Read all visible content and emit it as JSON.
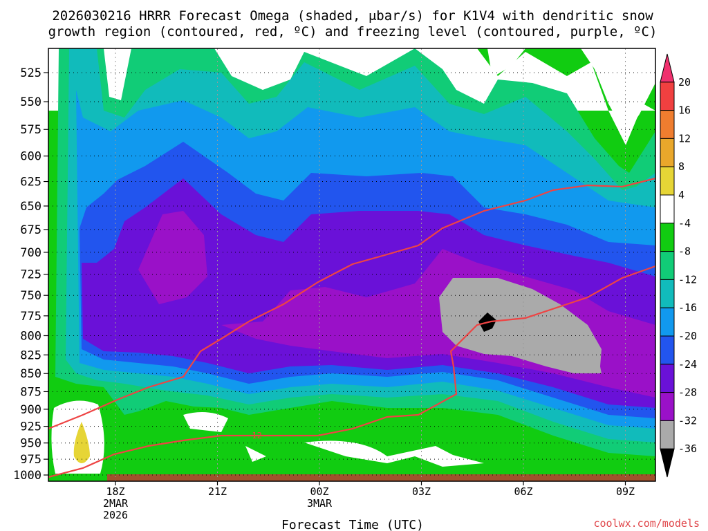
{
  "title_line1": "2026030216 HRRR Forecast Omega (shaded, μbar/s) for K1V4 with dendritic snow",
  "title_line2": "growth region (contoured, red, ºC) and freezing level (contoured, purple, ºC)",
  "credit": "coolwx.com/models",
  "chart_data": {
    "type": "heatmap",
    "title": "2026030216 HRRR Forecast Omega (shaded, μbar/s) for K1V4 with dendritic snow growth region (contoured, red, ºC) and freezing level (contoured, purple, ºC)",
    "xlabel": "Forecast Time (UTC)",
    "ylabel": "",
    "y_scale": "log-pressure (inverted)",
    "ylim": [
      1010,
      505
    ],
    "y_ticks": [
      525,
      550,
      575,
      600,
      625,
      650,
      675,
      700,
      725,
      750,
      775,
      800,
      825,
      850,
      875,
      900,
      925,
      950,
      975,
      1000
    ],
    "x_ticks": [
      {
        "label": "18Z",
        "sub1": "2MAR",
        "sub2": "2026"
      },
      {
        "label": "21Z",
        "sub1": "",
        "sub2": ""
      },
      {
        "label": "00Z",
        "sub1": "3MAR",
        "sub2": ""
      },
      {
        "label": "03Z",
        "sub1": "",
        "sub2": ""
      },
      {
        "label": "06Z",
        "sub1": "",
        "sub2": ""
      },
      {
        "label": "09Z",
        "sub1": "",
        "sub2": ""
      }
    ],
    "grid": true,
    "colorbar": {
      "placement": "right",
      "labels": [
        "20",
        "16",
        "12",
        "8",
        "4",
        "-4",
        "-8",
        "-12",
        "-16",
        "-20",
        "-24",
        "-28",
        "-32",
        "-36"
      ],
      "colors": [
        "#f0306e",
        "#f04040",
        "#ef7d2f",
        "#e9a72b",
        "#e6d536",
        "#ffffff",
        "#11cc11",
        "#11cc77",
        "#11bbbb",
        "#1199ee",
        "#2255ee",
        "#6a11d8",
        "#9a11c8",
        "#aaaaaa",
        "#000000"
      ]
    },
    "contour_labels": [
      "-12"
    ],
    "notes_visible": "Strongest upward motion (≤ -32 μbar/s, gray) near 750–825 hPa around 04Z–08Z; red isotherm contours bound the dendritic growth zone."
  }
}
